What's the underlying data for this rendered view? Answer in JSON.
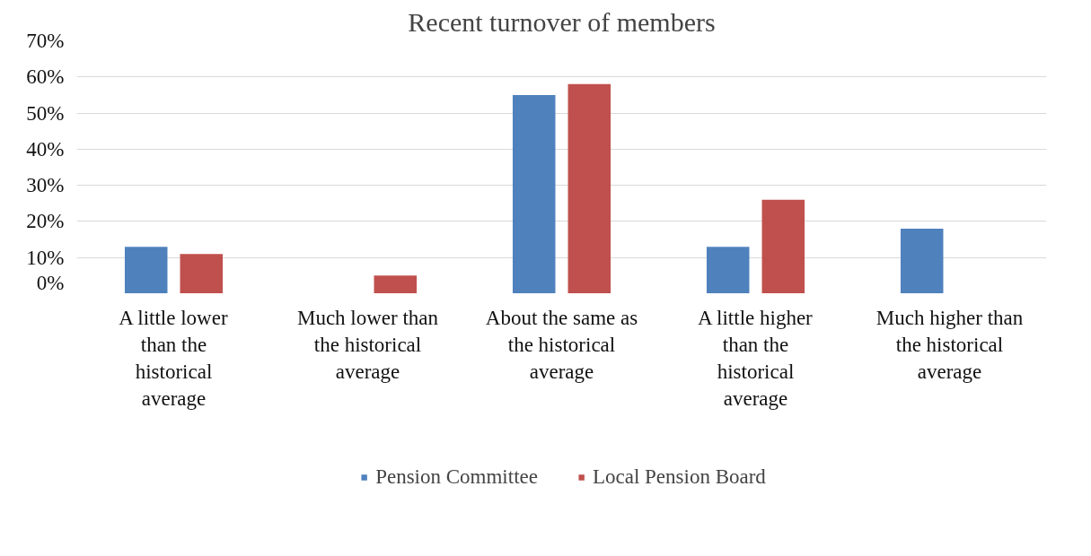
{
  "chart_data": {
    "type": "bar",
    "title": "Recent turnover of members",
    "categories": [
      "A little lower than the historical average",
      "Much lower than the historical average",
      "About the same as the historical average",
      "A little higher than the historical average",
      "Much higher than the historical average"
    ],
    "series": [
      {
        "name": "Pension Committee",
        "color": "#4f81bd",
        "values": [
          13,
          0,
          55,
          13,
          18
        ]
      },
      {
        "name": "Local Pension Board",
        "color": "#c0504d",
        "values": [
          11,
          5,
          58,
          26,
          0
        ]
      }
    ],
    "ylim": [
      0,
      70
    ],
    "yticks": [
      {
        "value": 0,
        "label": "0%"
      },
      {
        "value": 10,
        "label": "10%"
      },
      {
        "value": 20,
        "label": "20%"
      },
      {
        "value": 30,
        "label": "30%"
      },
      {
        "value": 40,
        "label": "40%"
      },
      {
        "value": 50,
        "label": "50%"
      },
      {
        "value": 60,
        "label": "60%"
      },
      {
        "value": 70,
        "label": "70%"
      }
    ],
    "grid": "y",
    "legend": "bottom"
  }
}
